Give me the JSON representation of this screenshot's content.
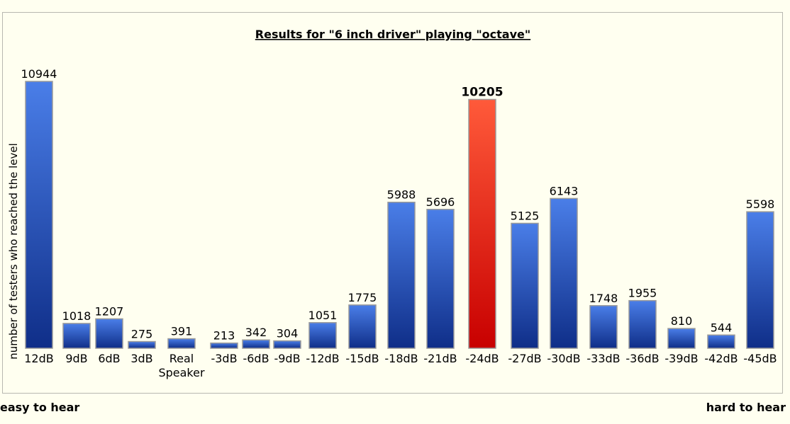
{
  "chart_data": {
    "type": "bar",
    "title": "Results for \"6 inch driver\" playing \"octave\"",
    "ylabel": "number of testers who reached the level",
    "categories": [
      "12dB",
      "9dB",
      "6dB",
      "3dB",
      "Real\nSpeaker",
      "-3dB",
      "-6dB",
      "-9dB",
      "-12dB",
      "-15dB",
      "-18dB",
      "-21dB",
      "-24dB",
      "-27dB",
      "-30dB",
      "-33dB",
      "-36dB",
      "-39dB",
      "-42dB",
      "-45dB"
    ],
    "values": [
      10944,
      1018,
      1207,
      275,
      391,
      213,
      342,
      304,
      1051,
      1775,
      5988,
      5696,
      10205,
      5125,
      6143,
      1748,
      1955,
      810,
      544,
      5598
    ],
    "highlight_category": "-24dB",
    "ylim": [
      0,
      10944
    ],
    "grid": false,
    "colors": {
      "bar": "#2a55c8",
      "highlight": "#e02810"
    }
  },
  "footer": {
    "left": "easy to hear",
    "right": "hard to hear"
  }
}
